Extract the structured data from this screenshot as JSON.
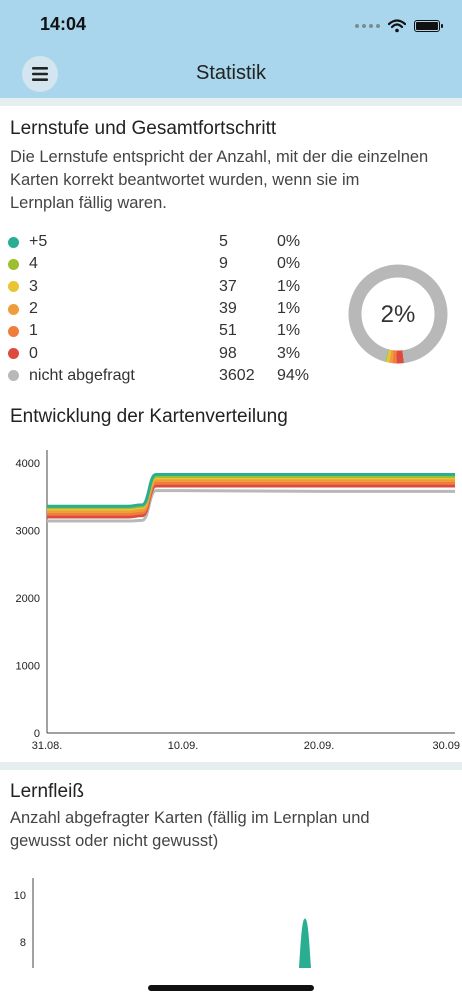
{
  "status_bar": {
    "time": "14:04"
  },
  "header": {
    "title": "Statistik",
    "menu_icon": "hamburger-icon"
  },
  "section1": {
    "title": "Lernstufe und Gesamtfortschritt",
    "description_lines": [
      "Die Lernstufe entspricht der Anzahl, mit der die einzelnen",
      "Karten korrekt beantwortet wurden, wenn sie im",
      "Lernplan fällig waren."
    ],
    "levels": [
      {
        "label": "+5",
        "count": "5",
        "pct": "0%",
        "color": "#2aae91"
      },
      {
        "label": "4",
        "count": "9",
        "pct": "0%",
        "color": "#9dbf2f"
      },
      {
        "label": "3",
        "count": "37",
        "pct": "1%",
        "color": "#e8c531"
      },
      {
        "label": "2",
        "count": "39",
        "pct": "1%",
        "color": "#ef9d3c"
      },
      {
        "label": "1",
        "count": "51",
        "pct": "1%",
        "color": "#ef7d3b"
      },
      {
        "label": "0",
        "count": "98",
        "pct": "3%",
        "color": "#de4a3e"
      },
      {
        "label": "nicht abgefragt",
        "count": "3602",
        "pct": "94%",
        "color": "#b8b8b8"
      }
    ],
    "donut_label": "2%"
  },
  "section2": {
    "title": "Entwicklung der Kartenverteilung"
  },
  "section3": {
    "title": "Lernfleiß",
    "description_lines": [
      "Anzahl abgefragter Karten (fällig im Lernplan und",
      "gewusst oder nicht gewusst)"
    ]
  },
  "chart_data": [
    {
      "type": "area",
      "x": [
        "31.08.",
        "03.09.",
        "06.09.",
        "07.09.",
        "08.09.",
        "10.09.",
        "20.09.",
        "30.09."
      ],
      "x_tick_labels": [
        "31.08.",
        "10.09.",
        "20.09.",
        "30.09"
      ],
      "y_tick_labels": [
        "0",
        "1000",
        "2000",
        "3000",
        "4000"
      ],
      "ylim": [
        0,
        4000
      ],
      "series": [
        {
          "values": [
            3140,
            3140,
            3140,
            3150,
            3590,
            3590,
            3580,
            3580
          ],
          "color": "#b8b8b8"
        },
        {
          "values": [
            3200,
            3200,
            3200,
            3220,
            3660,
            3660,
            3660,
            3660
          ],
          "color": "#de4a3e"
        },
        {
          "values": [
            3240,
            3240,
            3240,
            3260,
            3700,
            3700,
            3700,
            3700
          ],
          "color": "#ef7d3b"
        },
        {
          "values": [
            3280,
            3280,
            3280,
            3300,
            3740,
            3740,
            3740,
            3740
          ],
          "color": "#ef9d3c"
        },
        {
          "values": [
            3320,
            3320,
            3320,
            3340,
            3780,
            3780,
            3780,
            3780
          ],
          "color": "#e8c531"
        },
        {
          "values": [
            3340,
            3340,
            3340,
            3360,
            3800,
            3800,
            3800,
            3800
          ],
          "color": "#9dbf2f"
        },
        {
          "values": [
            3360,
            3360,
            3360,
            3380,
            3830,
            3830,
            3830,
            3830
          ],
          "color": "#2aae91"
        }
      ]
    },
    {
      "type": "area",
      "y_tick_labels": [
        "10",
        "8"
      ],
      "peak": {
        "value": 9,
        "color": "#2aae91"
      }
    }
  ]
}
